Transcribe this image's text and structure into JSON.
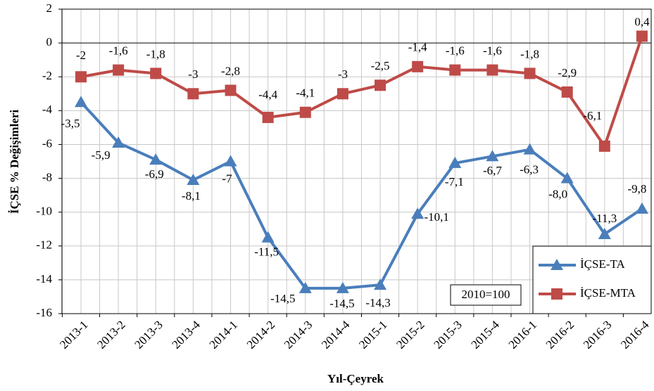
{
  "chart_data": {
    "type": "line",
    "x_label": "Yıl-Çeyrek",
    "y_label": "İÇSE % Değişimleri",
    "annotation": "2010=100",
    "categories": [
      "2013-1",
      "2013-2",
      "2013-3",
      "2013-4",
      "2014-1",
      "2014-2",
      "2014-3",
      "2014-4",
      "2015-1",
      "2015-2",
      "2015-3",
      "2015-4",
      "2016-1",
      "2016-2",
      "2016-3",
      "2016-4"
    ],
    "series": [
      {
        "name": "İÇSE-TA",
        "color": "#4a7ebb",
        "marker": "triangle",
        "values": [
          -3.5,
          -5.9,
          -6.9,
          -8.1,
          -7,
          -11.5,
          -14.5,
          -14.5,
          -14.3,
          -10.1,
          -7.1,
          -6.7,
          -6.3,
          -8.0,
          -11.3,
          -9.8
        ],
        "value_labels": [
          "-3,5",
          "-5,9",
          "-6,9",
          "-8,1",
          "-7",
          "-11,5",
          "-14,5",
          "-14,5",
          "-14,3",
          "-10,1",
          "-7,1",
          "-6,7",
          "-6,3",
          "-8,0",
          "-11,3",
          "-9,8"
        ]
      },
      {
        "name": "İÇSE-MTA",
        "color": "#be4b48",
        "marker": "square",
        "values": [
          -2,
          -1.6,
          -1.8,
          -3,
          -2.8,
          -4.4,
          -4.1,
          -3,
          -2.5,
          -1.4,
          -1.6,
          -1.6,
          -1.8,
          -2.9,
          -6.1,
          0.4
        ],
        "value_labels": [
          "-2",
          "-1,6",
          "-1,8",
          "-3",
          "-2,8",
          "-4,4",
          "-4,1",
          "-3",
          "-2,5",
          "-1,4",
          "-1,6",
          "-1,6",
          "-1,8",
          "-2,9",
          "-6,1",
          "0,4"
        ]
      }
    ],
    "ylim": [
      -16,
      2
    ],
    "yticks": [
      -16,
      -14,
      -12,
      -10,
      -8,
      -6,
      -4,
      -2,
      0,
      2
    ],
    "grid": true,
    "legend": "lower right"
  }
}
